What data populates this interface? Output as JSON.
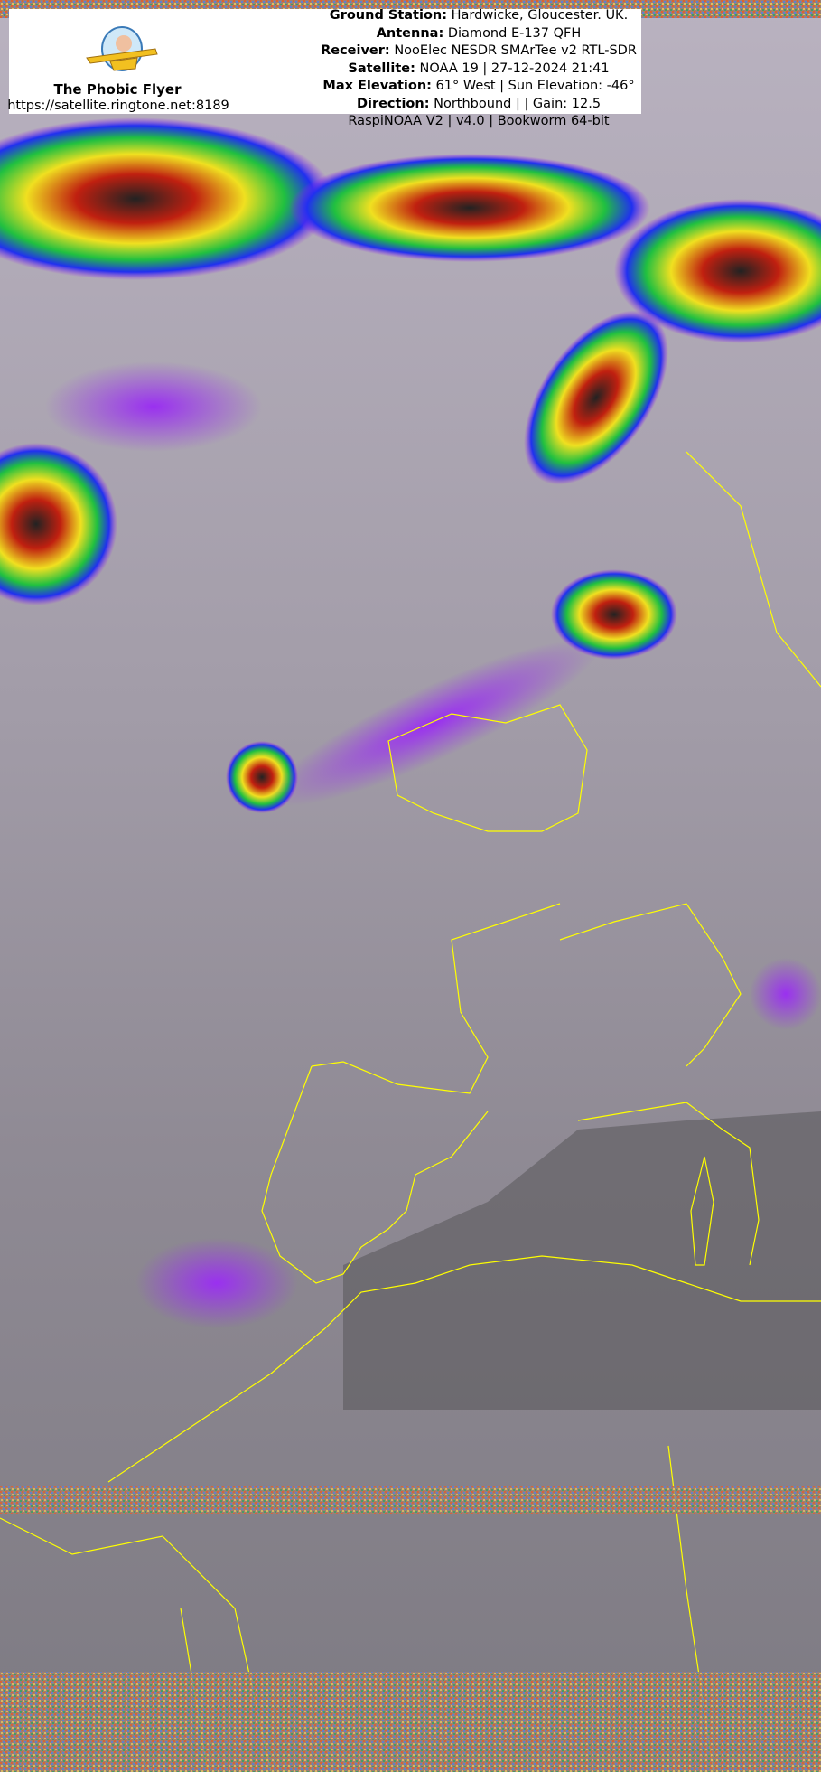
{
  "station": {
    "name": "The Phobic Flyer",
    "url": "https://satellite.ringtone.net:8189",
    "logo_icon": "phobic-flyer-logo"
  },
  "info": [
    {
      "label": "Ground Station:",
      "value": "Hardwicke, Gloucester. UK."
    },
    {
      "label": "Antenna:",
      "value": "Diamond E-137 QFH"
    },
    {
      "label": "Receiver:",
      "value": "NooElec NESDR SMArTee v2 RTL-SDR"
    },
    {
      "label": "Satellite:",
      "value": "NOAA 19 | 27-12-2024 21:41"
    },
    {
      "label": "Max Elevation:",
      "value": "61° West | Sun Elevation: -46°"
    },
    {
      "label": "Direction:",
      "value": "Northbound | | Gain: 12.5"
    },
    {
      "label": "",
      "value": "RaspiNOAA V2 | v4.0 | Bookworm 64-bit"
    }
  ],
  "colors": {
    "coastline": "#ffff00",
    "cloud": "#d8d0dc",
    "sea": "#5c5a5e"
  }
}
